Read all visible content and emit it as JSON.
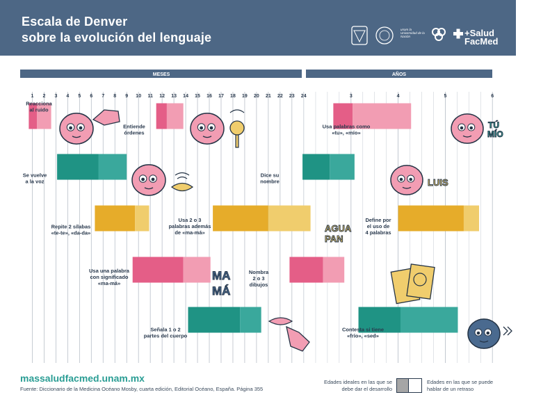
{
  "header": {
    "title_line1": "Escala de Denver",
    "title_line2": "sobre la evolución del lenguaje",
    "logos": [
      "UNAM",
      "Facultad de Medicina",
      "unam la Universidad de la Nación",
      "Coordinación de Comunicación Social",
      "+Salud FacMed"
    ]
  },
  "colors": {
    "header_bg": "#4d6785",
    "pink": "#e45e87",
    "pink_light": "#f29db3",
    "teal": "#1f9384",
    "teal_light": "#3aa89c",
    "yellow": "#e6ac2a",
    "yellow_light": "#f0cd6d"
  },
  "chart_data": {
    "type": "bar",
    "axis_headers": {
      "months": "MESES",
      "years": "AÑOS"
    },
    "month_ticks": [
      "1",
      "2",
      "3",
      "4",
      "5",
      "6",
      "7",
      "8",
      "9",
      "10",
      "11",
      "12",
      "13",
      "14",
      "15",
      "16",
      "17",
      "18",
      "19",
      "20",
      "21",
      "22",
      "23",
      "24"
    ],
    "year_ticks": [
      "3",
      "4",
      "5",
      "6"
    ],
    "legend": {
      "ideal": "Edades ideales en las que se debe dar el desarrollo",
      "delay": "Edades en las que se puede hablar de un retraso"
    },
    "items": [
      {
        "label": "Reacciona al ruido",
        "color": "pink",
        "start_months": 0.7,
        "ideal_end_months": 1.4,
        "delay_end_months": 2.6
      },
      {
        "label": "Entiende órdenes",
        "color": "pink",
        "start_months": 11.5,
        "ideal_end_months": 12.4,
        "delay_end_months": 13.8
      },
      {
        "label": "Usa palabras como «tu», «mío»",
        "color": "pink",
        "start_months": 31.5,
        "ideal_end_months": 36.4,
        "delay_end_months": 51.3
      },
      {
        "label": "Se vuelve a la voz",
        "color": "teal",
        "start_months": 3.1,
        "ideal_end_months": 6.6,
        "delay_end_months": 9.0
      },
      {
        "label": "Dice su nombre",
        "color": "teal",
        "start_months": 23.9,
        "ideal_end_months": 30.6,
        "delay_end_months": 36.9
      },
      {
        "label": "Repite 2 sílabas «te-te», «da-da»",
        "color": "yellow",
        "start_months": 6.3,
        "ideal_end_months": 9.7,
        "delay_end_months": 10.9
      },
      {
        "label": "Usa 2 o 3 palabras además de «ma-má»",
        "color": "yellow",
        "start_months": 16.3,
        "ideal_end_months": 21.0,
        "delay_end_months": 25.7
      },
      {
        "label": "Define por el uso de 4 palabras",
        "color": "yellow",
        "start_months": 48.0,
        "ideal_end_months": 64.7,
        "delay_end_months": 68.6
      },
      {
        "label": "Usa una palabra con significado «ma-má»",
        "color": "pink",
        "start_months": 9.5,
        "ideal_end_months": 13.8,
        "delay_end_months": 16.1
      },
      {
        "label": "Nombra 2 o 3 dibujos",
        "color": "pink",
        "start_months": 22.8,
        "ideal_end_months": 28.9,
        "delay_end_months": 34.3
      },
      {
        "label": "Señala 1 o 2 partes del cuerpo",
        "color": "teal",
        "start_months": 14.2,
        "ideal_end_months": 18.6,
        "delay_end_months": 20.4
      },
      {
        "label": "Contesta si tiene «frío», «sed»",
        "color": "teal",
        "start_months": 37.9,
        "ideal_end_months": 48.6,
        "delay_end_months": 63.2
      }
    ],
    "illustration_words": [
      "TÚ",
      "MÍO",
      "LUIS",
      "AGUA",
      "PAN",
      "MA",
      "MÁ"
    ]
  },
  "footer": {
    "url": "massaludfacmed.unam.mx",
    "source": "Fuente: Diccionario de la Medicina Océano Mosby, cuarta edición, Editorial Océano, España. Página 355"
  }
}
